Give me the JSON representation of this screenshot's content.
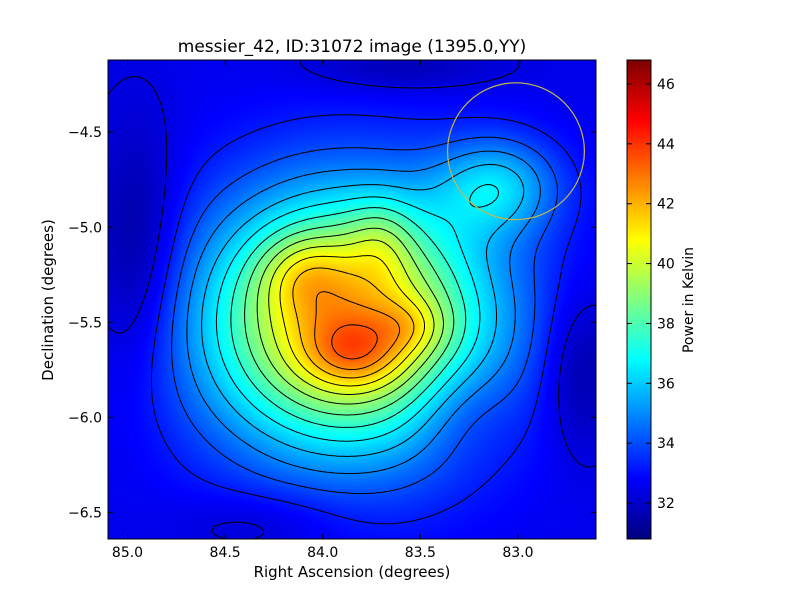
{
  "chart_data": {
    "type": "heatmap",
    "title": "messier_42, ID:31072 image (1395.0,YY)",
    "xlabel": "Right Ascension (degrees)",
    "ylabel": "Declination (degrees)",
    "xlim": [
      85.1,
      82.6
    ],
    "ylim": [
      -6.64,
      -4.12
    ],
    "xticks": [
      85.0,
      84.5,
      84.0,
      83.5,
      83.0
    ],
    "xtick_labels": [
      "85.0",
      "84.5",
      "84.0",
      "83.5",
      "83.0"
    ],
    "yticks": [
      -4.5,
      -5.0,
      -5.5,
      -6.0,
      -6.5
    ],
    "ytick_labels": [
      "−4.5",
      "−5.0",
      "−5.5",
      "−6.0",
      "−6.5"
    ],
    "colormap": "jet",
    "colorbar": {
      "label": "Power in Kelvin",
      "min": 30.8,
      "max": 46.8,
      "ticks": [
        32,
        34,
        36,
        38,
        40,
        42,
        44,
        46
      ],
      "tick_labels": [
        "32",
        "34",
        "36",
        "38",
        "40",
        "42",
        "44",
        "46"
      ]
    },
    "contours": {
      "color": "#000000",
      "levels_from": 31.5,
      "levels_to": 46.0,
      "step": 0.85
    },
    "background_level": 32.5,
    "components": [
      {
        "ra": 83.87,
        "dec": -5.5,
        "sx": 0.52,
        "sy": 0.48,
        "amp": 9.6
      },
      {
        "ra": 83.84,
        "dec": -5.66,
        "sx": 0.18,
        "sy": 0.13,
        "amp": 2.1
      },
      {
        "ra": 84.1,
        "dec": -5.25,
        "sx": 0.16,
        "sy": 0.15,
        "amp": 1.7
      },
      {
        "ra": 83.7,
        "dec": -5.07,
        "sx": 0.12,
        "sy": 0.16,
        "amp": 1.3
      },
      {
        "ra": 83.55,
        "dec": -5.52,
        "sx": 0.13,
        "sy": 0.1,
        "amp": 1.2
      },
      {
        "ra": 83.1,
        "dec": -4.78,
        "sx": 0.22,
        "sy": 0.18,
        "amp": 3.0
      },
      {
        "ra": 83.3,
        "dec": -5.95,
        "sx": 0.2,
        "sy": 0.2,
        "amp": -1.0
      },
      {
        "ra": 84.95,
        "dec": -5.15,
        "sx": 0.16,
        "sy": 0.45,
        "amp": -1.6
      },
      {
        "ra": 82.68,
        "dec": -5.75,
        "sx": 0.14,
        "sy": 0.3,
        "amp": -1.4
      },
      {
        "ra": 83.6,
        "dec": -4.15,
        "sx": 0.35,
        "sy": 0.1,
        "amp": -0.9
      },
      {
        "ra": 84.3,
        "dec": -6.55,
        "sx": 0.3,
        "sy": 0.12,
        "amp": -0.7
      }
    ],
    "beam_circle": {
      "ra": 83.01,
      "dec": -4.6,
      "radius_deg": 0.36,
      "color": "#c8b84a"
    }
  }
}
